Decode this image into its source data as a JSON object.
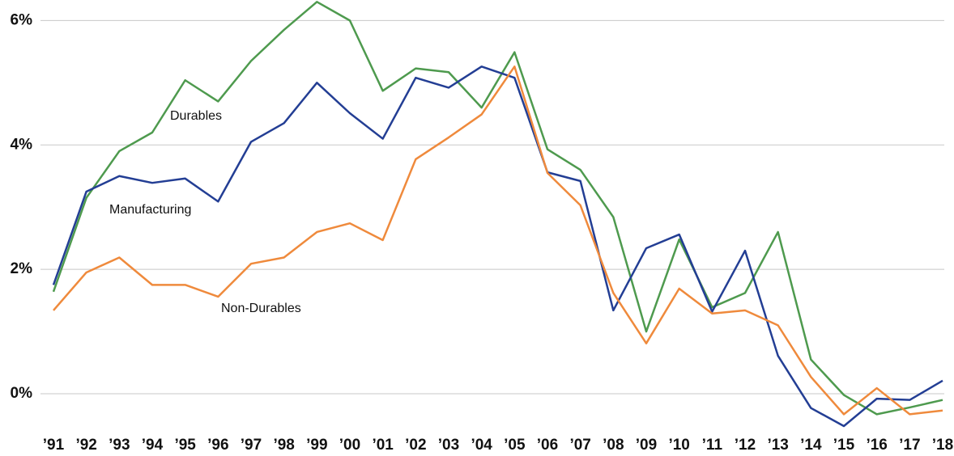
{
  "chart_data": {
    "type": "line",
    "categories": [
      "’91",
      "’92",
      "’93",
      "’94",
      "’95",
      "’96",
      "’97",
      "’98",
      "’99",
      "’00",
      "’01",
      "’02",
      "’03",
      "’04",
      "’05",
      "’06",
      "’07",
      "’08",
      "’09",
      "’10",
      "’11",
      "’12",
      "’13",
      "’14",
      "’15",
      "’16",
      "’17",
      "’18"
    ],
    "series": [
      {
        "name": "Durables",
        "color": "#4e9a4e",
        "values": [
          1.64,
          3.15,
          3.9,
          4.2,
          5.04,
          4.7,
          5.35,
          5.85,
          6.3,
          6.0,
          4.87,
          5.23,
          5.17,
          4.6,
          5.49,
          3.93,
          3.6,
          2.84,
          1.0,
          2.48,
          1.39,
          1.62,
          2.6,
          0.55,
          -0.02,
          -0.33,
          -0.22,
          -0.1
        ]
      },
      {
        "name": "Manufacturing",
        "color": "#233e94",
        "values": [
          1.75,
          3.25,
          3.5,
          3.39,
          3.46,
          3.09,
          4.05,
          4.35,
          5.0,
          4.51,
          4.1,
          5.08,
          4.92,
          5.26,
          5.08,
          3.56,
          3.42,
          1.34,
          2.34,
          2.56,
          1.32,
          2.3,
          0.61,
          -0.23,
          -0.52,
          -0.08,
          -0.1,
          0.21
        ]
      },
      {
        "name": "Non-Durables",
        "color": "#ef8a3c",
        "values": [
          1.34,
          1.95,
          2.19,
          1.75,
          1.75,
          1.56,
          2.09,
          2.19,
          2.6,
          2.74,
          2.47,
          3.77,
          4.12,
          4.49,
          5.26,
          3.55,
          3.03,
          1.62,
          0.81,
          1.69,
          1.29,
          1.34,
          1.1,
          0.27,
          -0.33,
          0.09,
          -0.33,
          -0.27
        ]
      }
    ],
    "ylim": [
      -0.65,
      6.33
    ],
    "yticks": [
      {
        "value": 0,
        "label": "0%"
      },
      {
        "value": 2,
        "label": "2%"
      },
      {
        "value": 4,
        "label": "4%"
      },
      {
        "value": 6,
        "label": "6%"
      }
    ],
    "grid": true
  }
}
